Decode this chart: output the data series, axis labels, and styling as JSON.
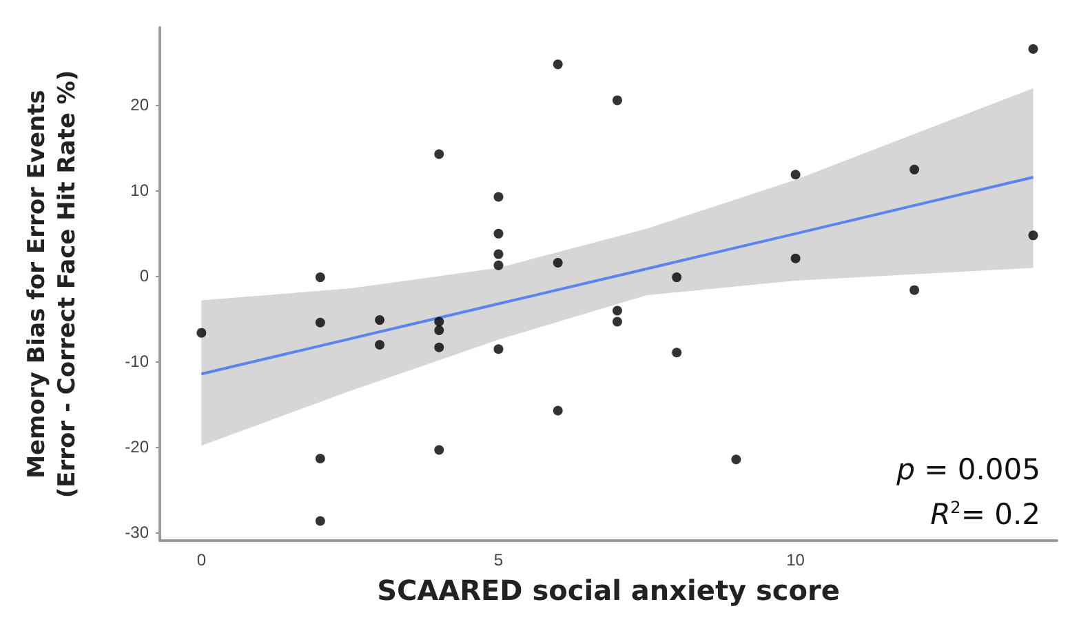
{
  "chart_data": {
    "type": "scatter",
    "xlabel": "SCAARED social anxiety score",
    "ylabel": "Memory Bias for Error Events\n(Error - Correct Face Hit Rate %)",
    "xlim": [
      -0.7,
      14.4
    ],
    "xticks": [
      0,
      5,
      10
    ],
    "ylim": [
      -31,
      29
    ],
    "yticks": [
      -30,
      -20,
      -10,
      0,
      10,
      20
    ],
    "grid": false,
    "annotations": [
      "p = 0.005",
      "R$^{2}$= 0.2"
    ],
    "series": [
      {
        "marker": "circle",
        "color": "#000000",
        "x": [
          0,
          2,
          2,
          2,
          2,
          3,
          3,
          4,
          4,
          4,
          4,
          4,
          5,
          5,
          5,
          5,
          5,
          6,
          6,
          6,
          7,
          7,
          7,
          8,
          8,
          9,
          10,
          10,
          12,
          12,
          14,
          14
        ],
        "values": [
          -6.7,
          -0.2,
          -5.5,
          -21.4,
          -28.7,
          -5.2,
          -8.1,
          14.2,
          -5.4,
          -6.4,
          -8.4,
          -20.4,
          9.2,
          4.9,
          2.5,
          1.2,
          -8.6,
          24.7,
          1.5,
          -15.8,
          20.5,
          -4.1,
          -5.4,
          -0.2,
          -9.0,
          -21.5,
          11.8,
          2.0,
          12.4,
          -1.7,
          26.5,
          4.7
        ]
      },
      {
        "type": "line",
        "color": "#5b84f0",
        "x": [
          0,
          2.5,
          5,
          7.5,
          10,
          14
        ],
        "values": [
          -11.5,
          -7.4,
          -3.3,
          0.8,
          4.9,
          11.5
        ],
        "lower": [
          -19.9,
          -13.5,
          -7.5,
          -2.3,
          -0.6,
          0.9
        ],
        "upper": [
          -2.9,
          -1.5,
          0.9,
          5.5,
          11.2,
          21.9
        ]
      }
    ]
  }
}
